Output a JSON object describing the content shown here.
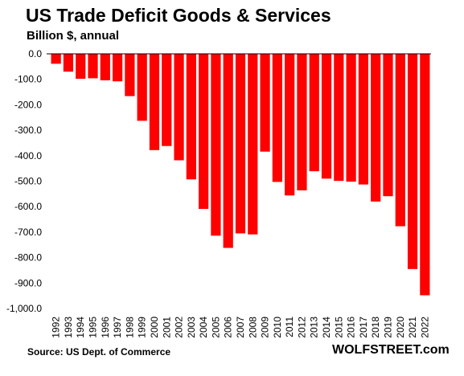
{
  "chart_data": {
    "type": "bar",
    "title": "US Trade Deficit Goods  & Services",
    "subtitle": "Billion $, annual",
    "xlabel": "",
    "ylabel": "",
    "categories": [
      "1992",
      "1993",
      "1994",
      "1995",
      "1996",
      "1997",
      "1998",
      "1999",
      "2000",
      "2001",
      "2002",
      "2003",
      "2004",
      "2005",
      "2006",
      "2007",
      "2008",
      "2009",
      "2010",
      "2011",
      "2012",
      "2013",
      "2014",
      "2015",
      "2016",
      "2017",
      "2018",
      "2019",
      "2020",
      "2021",
      "2022"
    ],
    "values": [
      -39,
      -70,
      -98,
      -96,
      -104,
      -108,
      -166,
      -263,
      -378,
      -362,
      -418,
      -493,
      -609,
      -714,
      -762,
      -705,
      -709,
      -384,
      -503,
      -556,
      -536,
      -461,
      -490,
      -499,
      -502,
      -513,
      -580,
      -559,
      -677,
      -845,
      -948
    ],
    "yticks": [
      "0.0",
      "-100.0",
      "-200.0",
      "-300.0",
      "-400.0",
      "-500.0",
      "-600.0",
      "-700.0",
      "-800.0",
      "-900.0",
      "-1,000.0"
    ],
    "ylim": [
      -1000,
      0
    ],
    "grid": false,
    "bar_color": "#ff0000"
  },
  "footer": {
    "source": "Source: US Dept. of Commerce",
    "brand": "WOLFSTREET.com"
  }
}
